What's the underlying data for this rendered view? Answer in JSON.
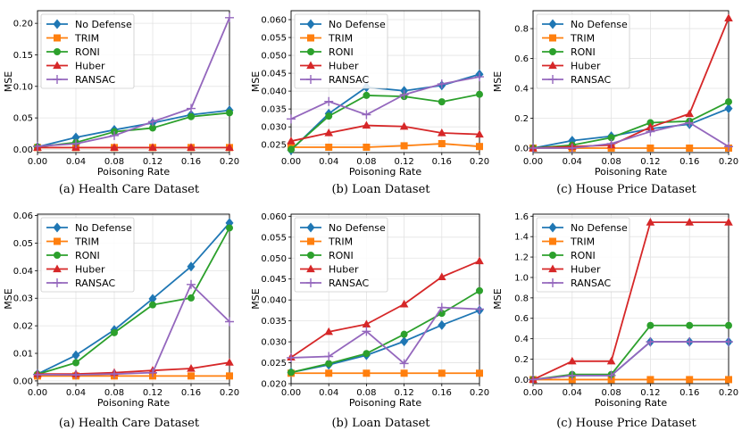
{
  "chart_data": [
    {
      "type": "line",
      "xlabel": "Poisoning Rate",
      "ylabel": "MSE",
      "caption": "(a) Health Care Dataset",
      "x": [
        0.0,
        0.04,
        0.08,
        0.12,
        0.16,
        0.2
      ],
      "xticks": [
        "0.00",
        "0.04",
        "0.08",
        "0.12",
        "0.16",
        "0.20"
      ],
      "ylim": [
        -0.005,
        0.22
      ],
      "yticks": [
        0.0,
        0.05,
        0.1,
        0.15,
        0.2
      ],
      "yticklabels": [
        "0.00",
        "0.05",
        "0.10",
        "0.15",
        "0.20"
      ],
      "legend": "upper-left",
      "series": [
        {
          "name": "No Defense",
          "color": "#1f77b4",
          "marker": "diamond",
          "values": [
            0.004,
            0.019,
            0.031,
            0.042,
            0.055,
            0.062
          ]
        },
        {
          "name": "TRIM",
          "color": "#ff7f0e",
          "marker": "square",
          "values": [
            0.003,
            0.003,
            0.003,
            0.003,
            0.003,
            0.003
          ]
        },
        {
          "name": "RONI",
          "color": "#2ca02c",
          "marker": "circle",
          "values": [
            0.004,
            0.011,
            0.028,
            0.034,
            0.052,
            0.058
          ]
        },
        {
          "name": "Huber",
          "color": "#d62728",
          "marker": "triangle",
          "values": [
            0.003,
            0.003,
            0.003,
            0.003,
            0.003,
            0.003
          ]
        },
        {
          "name": "RANSAC",
          "color": "#9467bd",
          "marker": "plus",
          "values": [
            0.005,
            0.009,
            0.022,
            0.044,
            0.065,
            0.209
          ]
        }
      ]
    },
    {
      "type": "line",
      "xlabel": "Poisoning Rate",
      "ylabel": "MSE",
      "caption": "(b) Loan Dataset",
      "x": [
        0.0,
        0.04,
        0.08,
        0.12,
        0.16,
        0.2
      ],
      "xticks": [
        "0.00",
        "0.04",
        "0.08",
        "0.12",
        "0.16",
        "0.20"
      ],
      "ylim": [
        0.0228,
        0.0625
      ],
      "yticks": [
        0.025,
        0.03,
        0.035,
        0.04,
        0.045,
        0.05,
        0.055,
        0.06
      ],
      "yticklabels": [
        "0.025",
        "0.030",
        "0.035",
        "0.040",
        "0.045",
        "0.050",
        "0.055",
        "0.060"
      ],
      "legend": "upper-left",
      "series": [
        {
          "name": "No Defense",
          "color": "#1f77b4",
          "marker": "diamond",
          "values": [
            0.0235,
            0.0337,
            0.0411,
            0.0401,
            0.0416,
            0.0447
          ]
        },
        {
          "name": "TRIM",
          "color": "#ff7f0e",
          "marker": "square",
          "values": [
            0.0243,
            0.0243,
            0.0243,
            0.0247,
            0.0253,
            0.0245
          ]
        },
        {
          "name": "RONI",
          "color": "#2ca02c",
          "marker": "circle",
          "values": [
            0.0237,
            0.033,
            0.0388,
            0.0385,
            0.037,
            0.0391
          ]
        },
        {
          "name": "Huber",
          "color": "#d62728",
          "marker": "triangle",
          "values": [
            0.026,
            0.0283,
            0.0304,
            0.0301,
            0.0283,
            0.0279
          ]
        },
        {
          "name": "RANSAC",
          "color": "#9467bd",
          "marker": "plus",
          "values": [
            0.0322,
            0.0371,
            0.0334,
            0.039,
            0.042,
            0.044
          ]
        }
      ]
    },
    {
      "type": "line",
      "xlabel": "Poisoning Rate",
      "ylabel": "MSE",
      "caption": "(c) House Price Dataset",
      "x": [
        0.0,
        0.04,
        0.08,
        0.12,
        0.16,
        0.2
      ],
      "xticks": [
        "0.00",
        "0.04",
        "0.08",
        "0.12",
        "0.16",
        "0.20"
      ],
      "ylim": [
        -0.03,
        0.92
      ],
      "yticks": [
        0.0,
        0.2,
        0.4,
        0.6,
        0.8
      ],
      "yticklabels": [
        "0.0",
        "0.2",
        "0.4",
        "0.6",
        "0.8"
      ],
      "legend": "upper-left",
      "series": [
        {
          "name": "No Defense",
          "color": "#1f77b4",
          "marker": "diamond",
          "values": [
            0.0,
            0.05,
            0.08,
            0.13,
            0.16,
            0.265
          ]
        },
        {
          "name": "TRIM",
          "color": "#ff7f0e",
          "marker": "square",
          "values": [
            0.0,
            0.0,
            0.0,
            0.0,
            0.0,
            0.0
          ]
        },
        {
          "name": "RONI",
          "color": "#2ca02c",
          "marker": "circle",
          "values": [
            0.0,
            0.02,
            0.07,
            0.17,
            0.18,
            0.31
          ]
        },
        {
          "name": "Huber",
          "color": "#d62728",
          "marker": "triangle",
          "values": [
            0.0,
            0.01,
            0.02,
            0.14,
            0.23,
            0.87
          ]
        },
        {
          "name": "RANSAC",
          "color": "#9467bd",
          "marker": "plus",
          "values": [
            0.0,
            0.0,
            0.03,
            0.11,
            0.17,
            0.01
          ]
        }
      ]
    },
    {
      "type": "line",
      "xlabel": "Poisoning Rate",
      "ylabel": "MSE",
      "caption": "(a) Health Care Dataset",
      "x": [
        0.0,
        0.04,
        0.08,
        0.12,
        0.16,
        0.2
      ],
      "xticks": [
        "0.00",
        "0.04",
        "0.08",
        "0.12",
        "0.16",
        "0.20"
      ],
      "ylim": [
        -0.001,
        0.0605
      ],
      "yticks": [
        0.0,
        0.01,
        0.02,
        0.03,
        0.04,
        0.05,
        0.06
      ],
      "yticklabels": [
        "0.00",
        "0.01",
        "0.02",
        "0.03",
        "0.04",
        "0.05",
        "0.06"
      ],
      "legend": "upper-left",
      "series": [
        {
          "name": "No Defense",
          "color": "#1f77b4",
          "marker": "diamond",
          "values": [
            0.0025,
            0.0093,
            0.0185,
            0.0298,
            0.0415,
            0.0573
          ]
        },
        {
          "name": "TRIM",
          "color": "#ff7f0e",
          "marker": "square",
          "values": [
            0.0018,
            0.0018,
            0.0018,
            0.0018,
            0.0018,
            0.0018
          ]
        },
        {
          "name": "RONI",
          "color": "#2ca02c",
          "marker": "circle",
          "values": [
            0.0024,
            0.0066,
            0.0175,
            0.0276,
            0.0301,
            0.0555
          ]
        },
        {
          "name": "Huber",
          "color": "#d62728",
          "marker": "triangle",
          "values": [
            0.0025,
            0.0025,
            0.003,
            0.0038,
            0.0045,
            0.0067
          ]
        },
        {
          "name": "RANSAC",
          "color": "#9467bd",
          "marker": "plus",
          "values": [
            0.0023,
            0.0022,
            0.0025,
            0.003,
            0.035,
            0.0215
          ]
        }
      ]
    },
    {
      "type": "line",
      "xlabel": "Poisoning Rate",
      "ylabel": "MSE",
      "caption": "(b) Loan Dataset",
      "x": [
        0.0,
        0.04,
        0.08,
        0.12,
        0.16,
        0.2
      ],
      "xticks": [
        "0.00",
        "0.04",
        "0.08",
        "0.12",
        "0.16",
        "0.20"
      ],
      "ylim": [
        0.02,
        0.0605
      ],
      "yticks": [
        0.02,
        0.025,
        0.03,
        0.035,
        0.04,
        0.045,
        0.05,
        0.055,
        0.06
      ],
      "yticklabels": [
        "0.020",
        "0.025",
        "0.030",
        "0.035",
        "0.040",
        "0.045",
        "0.050",
        "0.055",
        "0.060"
      ],
      "legend": "upper-left",
      "series": [
        {
          "name": "No Defense",
          "color": "#1f77b4",
          "marker": "diamond",
          "values": [
            0.0227,
            0.0245,
            0.0268,
            0.0301,
            0.034,
            0.0375
          ]
        },
        {
          "name": "TRIM",
          "color": "#ff7f0e",
          "marker": "square",
          "values": [
            0.0225,
            0.0225,
            0.0225,
            0.0225,
            0.0225,
            0.0225
          ]
        },
        {
          "name": "RONI",
          "color": "#2ca02c",
          "marker": "circle",
          "values": [
            0.0227,
            0.0248,
            0.0272,
            0.0318,
            0.0368,
            0.0422
          ]
        },
        {
          "name": "Huber",
          "color": "#d62728",
          "marker": "triangle",
          "values": [
            0.0263,
            0.0324,
            0.0342,
            0.039,
            0.0455,
            0.0493
          ]
        },
        {
          "name": "RANSAC",
          "color": "#9467bd",
          "marker": "plus",
          "values": [
            0.0262,
            0.0265,
            0.0325,
            0.0248,
            0.0382,
            0.0378
          ]
        }
      ]
    },
    {
      "type": "line",
      "xlabel": "Poisoning Rate",
      "ylabel": "MSE",
      "caption": "(c) House Price Dataset",
      "x": [
        0.0,
        0.04,
        0.08,
        0.12,
        0.16,
        0.2
      ],
      "xticks": [
        "0.00",
        "0.04",
        "0.08",
        "0.12",
        "0.16",
        "0.20"
      ],
      "ylim": [
        -0.04,
        1.62
      ],
      "yticks": [
        0.0,
        0.2,
        0.4,
        0.6,
        0.8,
        1.0,
        1.2,
        1.4,
        1.6
      ],
      "yticklabels": [
        "0.0",
        "0.2",
        "0.4",
        "0.6",
        "0.8",
        "1.0",
        "1.2",
        "1.4",
        "1.6"
      ],
      "legend": "upper-left",
      "series": [
        {
          "name": "No Defense",
          "color": "#1f77b4",
          "marker": "diamond",
          "values": [
            0.0,
            0.04,
            0.04,
            0.37,
            0.37,
            0.37
          ]
        },
        {
          "name": "TRIM",
          "color": "#ff7f0e",
          "marker": "square",
          "values": [
            0.0,
            0.0,
            0.0,
            0.0,
            0.0,
            0.0
          ]
        },
        {
          "name": "RONI",
          "color": "#2ca02c",
          "marker": "circle",
          "values": [
            0.0,
            0.05,
            0.05,
            0.53,
            0.53,
            0.53
          ]
        },
        {
          "name": "Huber",
          "color": "#d62728",
          "marker": "triangle",
          "values": [
            0.0,
            0.18,
            0.18,
            1.54,
            1.54,
            1.54
          ]
        },
        {
          "name": "RANSAC",
          "color": "#9467bd",
          "marker": "plus",
          "values": [
            0.0,
            0.04,
            0.04,
            0.37,
            0.37,
            0.37
          ]
        }
      ]
    }
  ]
}
